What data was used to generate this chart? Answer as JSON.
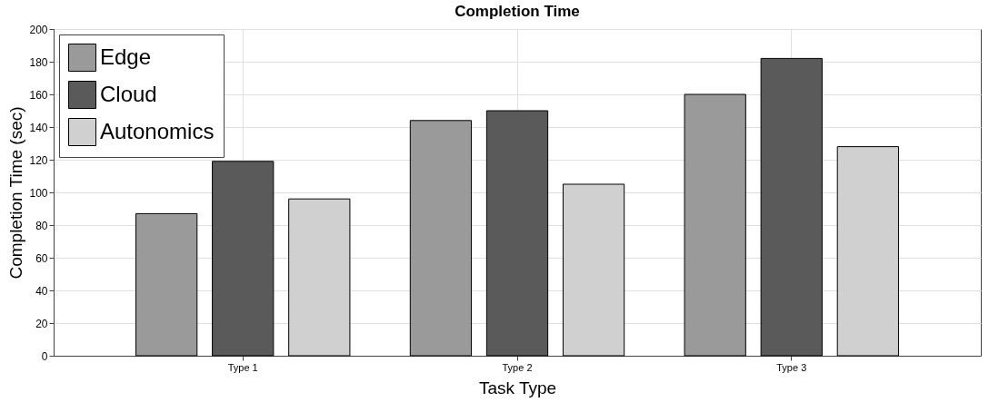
{
  "chart_data": {
    "type": "bar",
    "title": "Completion Time",
    "xlabel": "Task Type",
    "ylabel": "Completion Time (sec)",
    "categories": [
      "Type 1",
      "Type 2",
      "Type 3"
    ],
    "series": [
      {
        "name": "Edge",
        "color": "#9a9a9a",
        "values": [
          87,
          144,
          160
        ]
      },
      {
        "name": "Cloud",
        "color": "#5a5a5a",
        "values": [
          119,
          150,
          182
        ]
      },
      {
        "name": "Autonomics",
        "color": "#d0d0d0",
        "values": [
          96,
          105,
          128
        ]
      }
    ],
    "ylim": [
      0,
      200
    ],
    "yticks": [
      0,
      20,
      40,
      60,
      80,
      100,
      120,
      140,
      160,
      180,
      200
    ],
    "grid": true,
    "legend": "top left"
  }
}
